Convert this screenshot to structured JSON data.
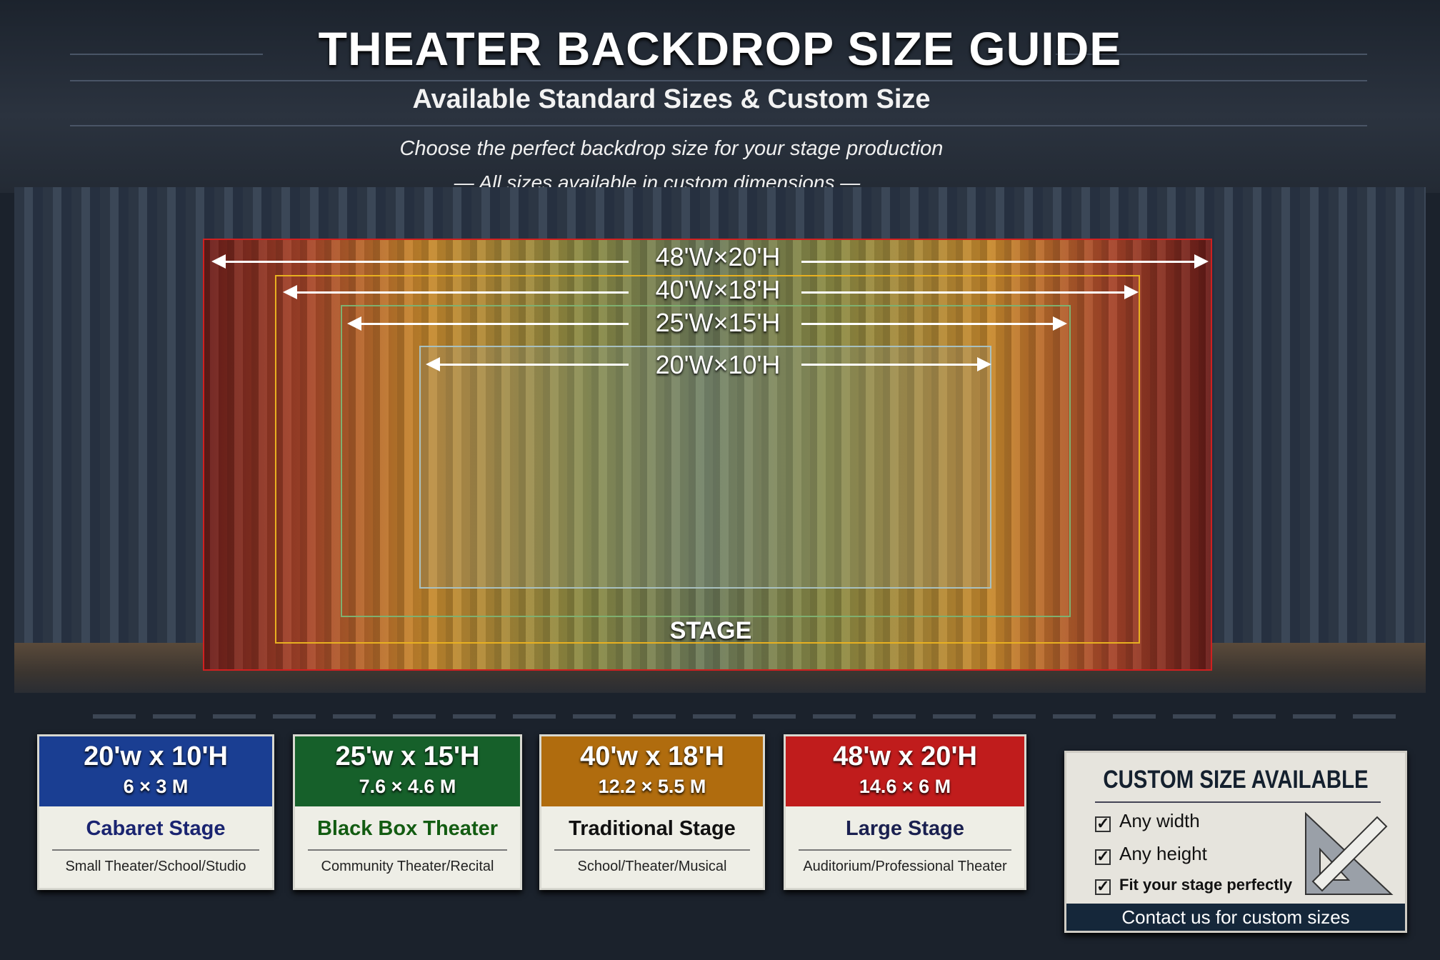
{
  "header": {
    "title": "THEATER BACKDROP SIZE GUIDE",
    "subtitle": "Available Standard Sizes & Custom Size",
    "tagline": "Choose the perfect backdrop size for your stage production",
    "tagline2": "— All sizes available in custom dimensions —"
  },
  "diagram": {
    "stage_label": "STAGE",
    "sizes": [
      {
        "label": "48'W×20'H",
        "color": "#d02020"
      },
      {
        "label": "40'W×18'H",
        "color": "#e8b020"
      },
      {
        "label": "25'W×15'H",
        "color": "#7fb070"
      },
      {
        "label": "20'W×10'H",
        "color": "#a8c0c0"
      }
    ]
  },
  "cards": [
    {
      "size": "20'w x 10'H",
      "metric": "6 × 3 M",
      "name": "Cabaret Stage",
      "use": "Small Theater/School/Studio",
      "color": "#1a3e92",
      "name_color": "#1a2470"
    },
    {
      "size": "25'w x 15'H",
      "metric": "7.6 × 4.6 M",
      "name": "Black Box Theater",
      "use": "Community Theater/Recital",
      "color": "#16602a",
      "name_color": "#135c12"
    },
    {
      "size": "40'w x 18'H",
      "metric": "12.2 × 5.5 M",
      "name": "Traditional Stage",
      "use": "School/Theater/Musical",
      "color": "#b06c0e",
      "name_color": "#111111"
    },
    {
      "size": "48'w x 20'H",
      "metric": "14.6 × 6 M",
      "name": "Large Stage",
      "use": "Auditorium/Professional Theater",
      "color": "#c01c1c",
      "name_color": "#1a2050"
    }
  ],
  "custom": {
    "title": "CUSTOM SIZE AVAILABLE",
    "items": [
      "Any width",
      "Any height",
      "Fit your stage perfectly"
    ],
    "contact": "Contact us for custom sizes",
    "icon": "ruler-triangle-icon"
  }
}
